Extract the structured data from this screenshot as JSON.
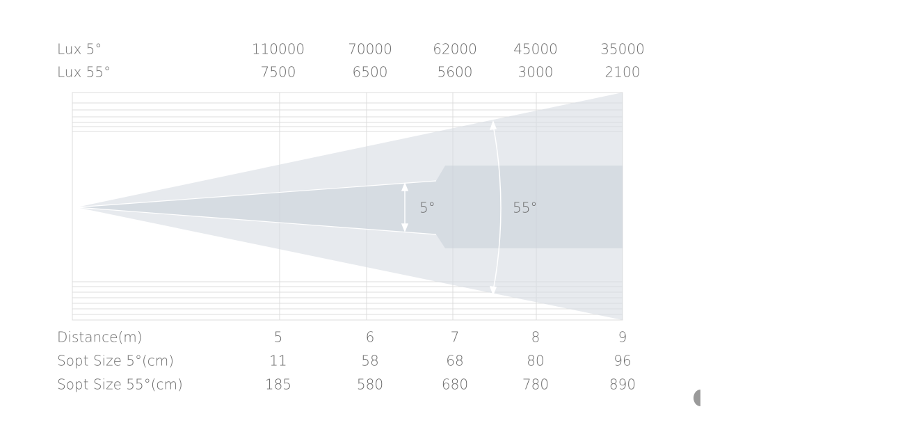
{
  "top_rows": [
    {
      "label": "Lux 5°",
      "values": [
        "110000",
        "70000",
        "62000",
        "45000",
        "35000"
      ]
    },
    {
      "label": "Lux 55°",
      "values": [
        "7500",
        "6500",
        "5600",
        "3000",
        "2100"
      ]
    }
  ],
  "bottom_rows": [
    {
      "label": "Distance(m)",
      "values": [
        "5",
        "6",
        "7",
        "8",
        "9"
      ]
    },
    {
      "label": "Sopt Size 5°(cm)",
      "values": [
        "11",
        "58",
        "68",
        "80",
        "96"
      ]
    },
    {
      "label": "Sopt Size 55°(cm)",
      "values": [
        "185",
        "580",
        "680",
        "780",
        "890"
      ]
    }
  ],
  "beam_labels": {
    "narrow": "5°",
    "wide": "55°"
  }
}
